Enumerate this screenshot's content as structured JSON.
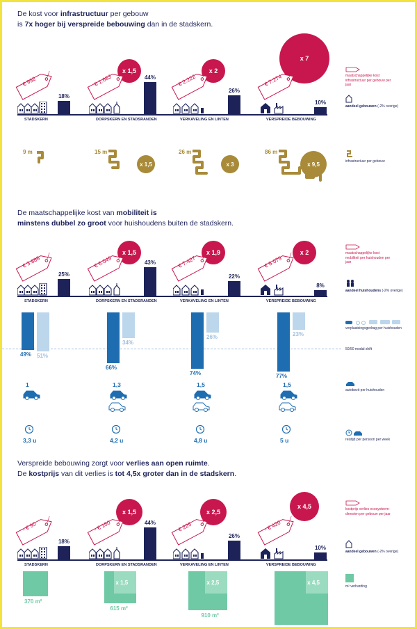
{
  "section1": {
    "title_pre": "De kost voor ",
    "title_bold1": "infrastructuur",
    "title_mid": " per gebouw",
    "title_line2_pre": "is ",
    "title_bold2": "7x hoger bij verspreide bebouwing",
    "title_line2_post": " dan in de stadskern.",
    "legend_cost": "maatschappelijke kost infrastructuur per gebouw per jaar",
    "legend_share": "aandeel gebouwen",
    "legend_share_note": " (-2% overige)",
    "legend_infra": "infrastructuur per gebouw"
  },
  "section2": {
    "title_pre": "De maatschappelijke kost van ",
    "title_bold1": "mobiliteit is",
    "title_bold2": "minstens dubbel zo groot",
    "title_post": " voor huishoudens buiten de stadskern.",
    "legend_cost": "maatschappelijke kost mobiliteit per huishouden per jaar",
    "legend_share": "aandeel huishoudens",
    "legend_share_note": " (-2% overige)",
    "legend_modal": "verplaatsingsgedrag per huishouden",
    "legend_shift": "50/50 modal shift",
    "legend_car": "autobezit per huishouden",
    "legend_time": "reistijd per persoon per week"
  },
  "section3": {
    "title_pre": "Verspreide bebouwing zorgt voor ",
    "title_bold1": "verlies aan open ruimte",
    "title_line1_end": ".",
    "title_line2_pre": "De ",
    "title_bold2": "kostprijs",
    "title_line2_mid": " van dit verlies is ",
    "title_bold3": "tot 4,5x groter dan in de stadskern",
    "title_line2_end": ".",
    "legend_cost": "kostprijs verlies ecosysteem-diensten per gebouw per jaar",
    "legend_share": "aandeel gebouwen",
    "legend_share_note": " (-2% overige)",
    "legend_sq": "m² verharding"
  },
  "categories": [
    "STADSKERN",
    "DORPSKERN EN STADSRANDEN",
    "VERKAVELING EN LINTEN",
    "VERSPREIDE BEBOUWING"
  ],
  "colors": {
    "navy": "#1d2358",
    "crimson": "#c8174e",
    "gold": "#a88a39",
    "blue": "#1f6db1",
    "lightblue": "#bcd6ec",
    "green": "#6fc9a5",
    "frame": "#f3e33f"
  },
  "chart_data": [
    {
      "type": "bar",
      "categories": [
        "STADSKERN",
        "DORPSKERN EN STADSRANDEN",
        "VERKAVELING EN LINTEN",
        "VERSPREIDE BEBOUWING"
      ],
      "series": [
        {
          "name": "aandeel gebouwen",
          "values": [
            18,
            44,
            26,
            10
          ],
          "labels": [
            "18%",
            "44%",
            "26%",
            "10%"
          ]
        }
      ],
      "cost_labels": [
        "€ 992",
        "€ 1.683",
        "€ 2.222",
        "€ 7.274"
      ],
      "multipliers": [
        null,
        "x 1,5",
        "x 2",
        "x 7"
      ],
      "multiplier_values": [
        1,
        1.5,
        2,
        7
      ]
    },
    {
      "type": "table",
      "categories": [
        "STADSKERN",
        "DORPSKERN EN STADSRANDEN",
        "VERKAVELING EN LINTEN",
        "VERSPREIDE BEBOUWING"
      ],
      "meters": [
        "9 m",
        "15 m",
        "26 m",
        "86 m"
      ],
      "multipliers": [
        null,
        "x 1,5",
        "x 3",
        "x 9,5"
      ],
      "multiplier_values": [
        1,
        1.5,
        3,
        9.5
      ]
    },
    {
      "type": "bar",
      "categories": [
        "STADSKERN",
        "DORPSKERN EN STADSRANDEN",
        "VERKAVELING EN LINTEN",
        "VERSPREIDE BEBOUWING"
      ],
      "series": [
        {
          "name": "aandeel huishoudens",
          "values": [
            25,
            43,
            22,
            8
          ],
          "labels": [
            "25%",
            "43%",
            "22%",
            "8%"
          ]
        }
      ],
      "cost_labels": [
        "€ 3.888",
        "€ 6.049",
        "€ 7.427",
        "€ 8.079"
      ],
      "multipliers": [
        null,
        "x 1,5",
        "x 1,9",
        "x 2"
      ],
      "multiplier_values": [
        1,
        1.5,
        1.9,
        2
      ]
    },
    {
      "type": "bar",
      "categories": [
        "STADSKERN",
        "DORPSKERN EN STADSRANDEN",
        "VERKAVELING EN LINTEN",
        "VERSPREIDE BEBOUWING"
      ],
      "series": [
        {
          "name": "auto",
          "values": [
            49,
            66,
            74,
            77
          ],
          "labels": [
            "49%",
            "66%",
            "74%",
            "77%"
          ]
        },
        {
          "name": "overige",
          "values": [
            51,
            34,
            26,
            23
          ],
          "labels": [
            "51%",
            "34%",
            "26%",
            "23%"
          ]
        }
      ],
      "ylim": [
        0,
        100
      ]
    },
    {
      "type": "table",
      "categories": [
        "STADSKERN",
        "DORPSKERN EN STADSRANDEN",
        "VERKAVELING EN LINTEN",
        "VERSPREIDE BEBOUWING"
      ],
      "car_ownership": [
        "1",
        "1,3",
        "1,5",
        "1,5"
      ],
      "car_ownership_values": [
        1,
        1.3,
        1.5,
        1.5
      ],
      "travel_time": [
        "3,3 u",
        "4,2 u",
        "4,8 u",
        "5 u"
      ]
    },
    {
      "type": "bar",
      "categories": [
        "STADSKERN",
        "DORPSKERN EN STADSRANDEN",
        "VERKAVELING EN LINTEN",
        "VERSPREIDE BEBOUWING"
      ],
      "series": [
        {
          "name": "aandeel gebouwen",
          "values": [
            18,
            44,
            26,
            10
          ],
          "labels": [
            "18%",
            "44%",
            "26%",
            "10%"
          ]
        }
      ],
      "cost_labels": [
        "- € 90",
        "- € 150",
        "€ 225",
        "- € 420"
      ],
      "multipliers": [
        null,
        "x 1,5",
        "x 2,5",
        "x 4,5"
      ],
      "multiplier_values": [
        1,
        1.5,
        2.5,
        4.5
      ]
    },
    {
      "type": "table",
      "categories": [
        "STADSKERN",
        "DORPSKERN EN STADSRANDEN",
        "VERKAVELING EN LINTEN",
        "VERSPREIDE BEBOUWING"
      ],
      "areas": [
        "370 m²",
        "615 m²",
        "910 m²",
        "1700 m²"
      ],
      "area_values": [
        370,
        615,
        910,
        1700
      ],
      "multipliers": [
        null,
        "x 1,5",
        "x 2,5",
        "x 4,5"
      ]
    }
  ]
}
